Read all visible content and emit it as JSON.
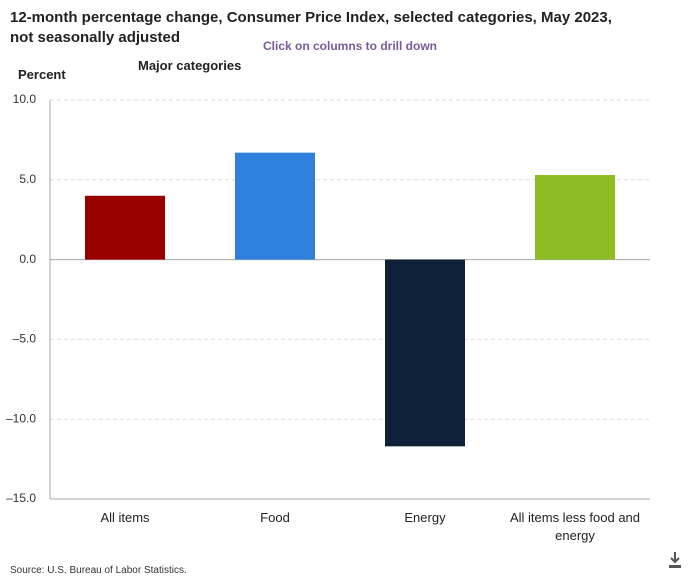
{
  "chart_data": {
    "type": "bar",
    "title": "12-month percentage change, Consumer Price Index, selected categories, May 2023, not seasonally adjusted",
    "subtitle": "Click on columns to drill down",
    "y_label": "Percent",
    "group_label": "Major categories",
    "categories": [
      "All items",
      "Food",
      "Energy",
      "All items less food and energy"
    ],
    "values": [
      4.0,
      6.7,
      -11.7,
      5.3
    ],
    "colors": [
      "#990000",
      "#2f80dc",
      "#0f2039",
      "#8dbd22"
    ],
    "ylim": [
      -15,
      10
    ],
    "yticks": [
      {
        "value": 10,
        "label": "10.0"
      },
      {
        "value": 5,
        "label": "5.0"
      },
      {
        "value": 0,
        "label": "0.0"
      },
      {
        "value": -5,
        "label": "–5.0"
      },
      {
        "value": -10,
        "label": "–10.0"
      },
      {
        "value": -15,
        "label": "–15.0"
      }
    ],
    "grid": true,
    "source": "Source: U.S. Bureau of Labor Statistics."
  }
}
